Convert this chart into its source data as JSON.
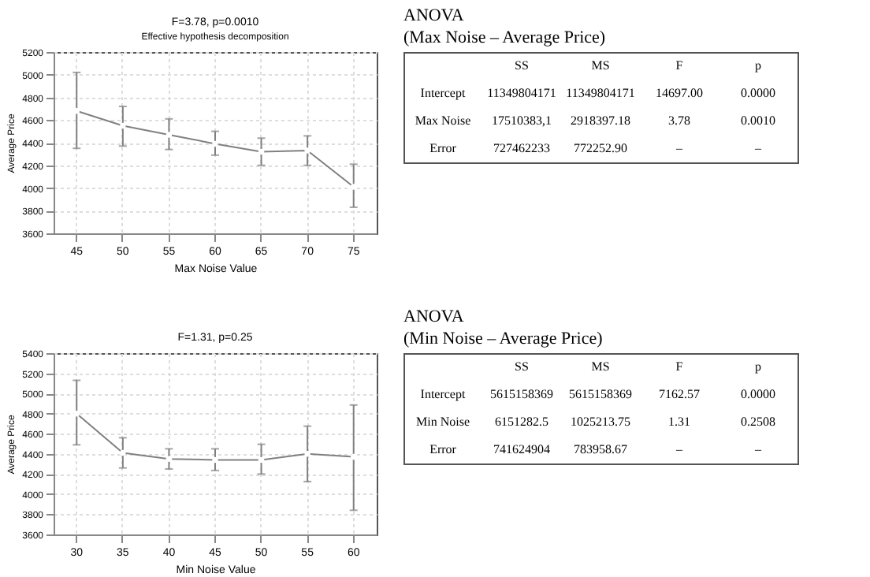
{
  "chart_data": [
    {
      "type": "line",
      "title": "F=3.78, p=0.0010",
      "subtitle": "Effective hypothesis decomposition",
      "xlabel": "Max Noise Value",
      "ylabel": "Average Price",
      "categories": [
        "45",
        "50",
        "55",
        "60",
        "65",
        "70",
        "75"
      ],
      "series": [
        {
          "color": "#808080",
          "values": [
            4680,
            4550,
            4470,
            4390,
            4320,
            4330,
            4010
          ],
          "errors": [
            [
              4350,
              5020
            ],
            [
              4370,
              4720
            ],
            [
              4340,
              4610
            ],
            [
              4290,
              4500
            ],
            [
              4200,
              4440
            ],
            [
              4200,
              4460
            ],
            [
              3830,
              4210
            ]
          ]
        }
      ],
      "ylim": [
        3600,
        5200
      ],
      "yticks": [
        3600,
        3800,
        4000,
        4200,
        4400,
        4600,
        4800,
        5000,
        5200
      ],
      "grid": true,
      "marker": "circle",
      "line_style": "solid"
    },
    {
      "type": "other",
      "title": "ANOVA",
      "subtitle": "(Max Noise – Average Price)",
      "categories": [
        "SS",
        "MS",
        "F",
        "p"
      ],
      "y_categories": [
        "Intercept",
        "Max Noise",
        "Error"
      ],
      "cell_labels": [
        [
          "11349804171",
          "11349804171",
          "14697.00",
          "0.0000"
        ],
        [
          "17510383,1",
          "2918397.18",
          "3.78",
          "0.0010"
        ],
        [
          "727462233",
          "772252.90",
          "–",
          "–"
        ]
      ]
    },
    {
      "type": "line",
      "title": "F=1.31, p=0.25",
      "xlabel": "Min Noise Value",
      "ylabel": "Average Price",
      "categories": [
        "30",
        "35",
        "40",
        "45",
        "50",
        "55",
        "60"
      ],
      "series": [
        {
          "color": "#808080",
          "values": [
            4800,
            4410,
            4350,
            4340,
            4340,
            4400,
            4370
          ],
          "errors": [
            [
              4490,
              5130
            ],
            [
              4260,
              4560
            ],
            [
              4250,
              4450
            ],
            [
              4235,
              4450
            ],
            [
              4200,
              4495
            ],
            [
              4125,
              4675
            ],
            [
              3840,
              4885
            ]
          ]
        }
      ],
      "ylim": [
        3600,
        5400
      ],
      "yticks": [
        3600,
        3800,
        4000,
        4200,
        4400,
        4600,
        4800,
        5000,
        5200,
        5400
      ],
      "grid": true,
      "marker": "circle",
      "line_style": "solid"
    },
    {
      "type": "other",
      "title": "ANOVA",
      "subtitle": "(Min Noise – Average Price)",
      "categories": [
        "SS",
        "MS",
        "F",
        "p"
      ],
      "y_categories": [
        "Intercept",
        "Min Noise",
        "Error"
      ],
      "cell_labels": [
        [
          "5615158369",
          "5615158369",
          "7162.57",
          "0.0000"
        ],
        [
          "6151282.5",
          "1025213.75",
          "1.31",
          "0.2508"
        ],
        [
          "741624904",
          "783958.67",
          "–",
          "–"
        ]
      ]
    }
  ]
}
